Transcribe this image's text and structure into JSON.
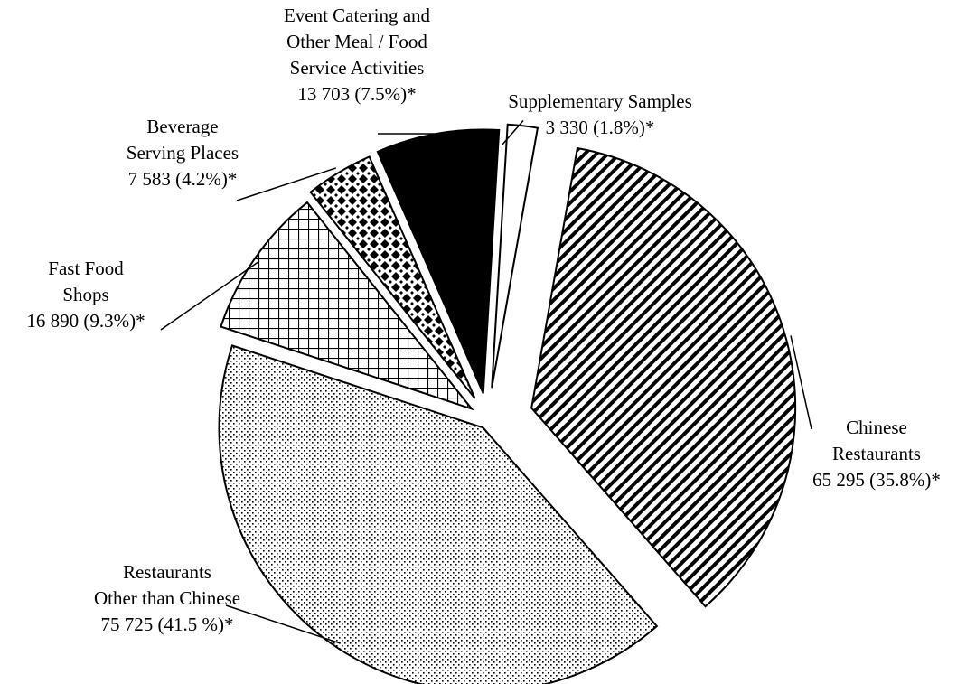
{
  "chart_data": {
    "type": "pie",
    "title": "",
    "slices": [
      {
        "label_lines": [
          "Chinese",
          "Restaurants",
          "65 295 (35.8%)*"
        ],
        "value": 65295,
        "percent": 35.8,
        "pattern": "diagonal-stripes"
      },
      {
        "label_lines": [
          "Restaurants",
          "Other than Chinese",
          "75 725 (41.5 %)*"
        ],
        "value": 75725,
        "percent": 41.5,
        "pattern": "dotted"
      },
      {
        "label_lines": [
          "Fast Food",
          "Shops",
          "16 890 (9.3%)*"
        ],
        "value": 16890,
        "percent": 9.3,
        "pattern": "grid"
      },
      {
        "label_lines": [
          "Beverage",
          "Serving Places",
          "7 583 (4.2%)*"
        ],
        "value": 7583,
        "percent": 4.2,
        "pattern": "checker-diamond"
      },
      {
        "label_lines": [
          "Event Catering and",
          "Other Meal / Food",
          "Service Activities",
          "13 703 (7.5%)*"
        ],
        "value": 13703,
        "percent": 7.5,
        "pattern": "solid-black"
      },
      {
        "label_lines": [
          "Supplementary Samples",
          "3 330 (1.8%)*"
        ],
        "value": 3330,
        "percent": 1.8,
        "pattern": "solid-white"
      }
    ]
  }
}
